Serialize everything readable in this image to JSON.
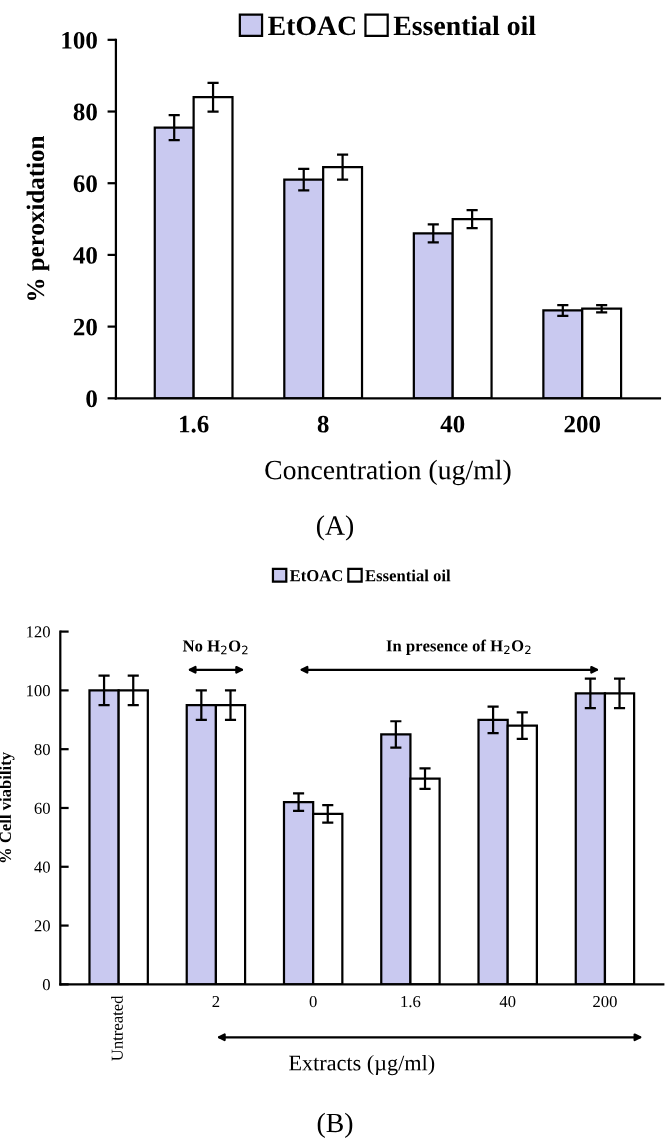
{
  "chart_data": [
    {
      "type": "bar",
      "categories": [
        "1.6",
        "8",
        "40",
        "200"
      ],
      "xlabel": "Concentration (ug/ml)",
      "ylabel": "% peroxidation",
      "ylim": [
        0,
        100
      ],
      "yticks": [
        0,
        20,
        40,
        60,
        80,
        100
      ],
      "grid": false,
      "legend": "top",
      "series": [
        {
          "name": "EtOAC",
          "color": "#c9c9f0",
          "values": [
            75.5,
            61,
            46,
            24.5
          ],
          "errors": [
            3.5,
            3,
            2.5,
            1.5
          ]
        },
        {
          "name": "Essential oil",
          "color": "#ffffff",
          "values": [
            84,
            64.5,
            50,
            25
          ],
          "errors": [
            4,
            3.5,
            2.5,
            1
          ]
        }
      ],
      "annotations": [
        "(A)"
      ]
    },
    {
      "type": "bar",
      "categories": [
        "Untreated",
        "2",
        "0",
        "1.6",
        "40",
        "200"
      ],
      "xlabel": "Extracts (µg/ml)",
      "ylabel": "% Cell viability",
      "ylim": [
        0,
        120
      ],
      "yticks": [
        0,
        20,
        40,
        60,
        80,
        100,
        120
      ],
      "grid": false,
      "legend": "top",
      "series": [
        {
          "name": "EtOAC",
          "color": "#c9c9f0",
          "values": [
            100,
            95,
            62,
            85,
            90,
            99
          ],
          "errors": [
            5,
            5,
            3,
            4.5,
            4.5,
            5
          ]
        },
        {
          "name": "Essential oil",
          "color": "#ffffff",
          "values": [
            100,
            95,
            58,
            70,
            88,
            99
          ],
          "errors": [
            5,
            5,
            3,
            3.5,
            4.5,
            5
          ]
        }
      ],
      "annotations": [
        "No H$_{2}$O$_{2}$",
        "In presence of H$_{2}$O$_{2}$",
        "(B)"
      ]
    }
  ]
}
